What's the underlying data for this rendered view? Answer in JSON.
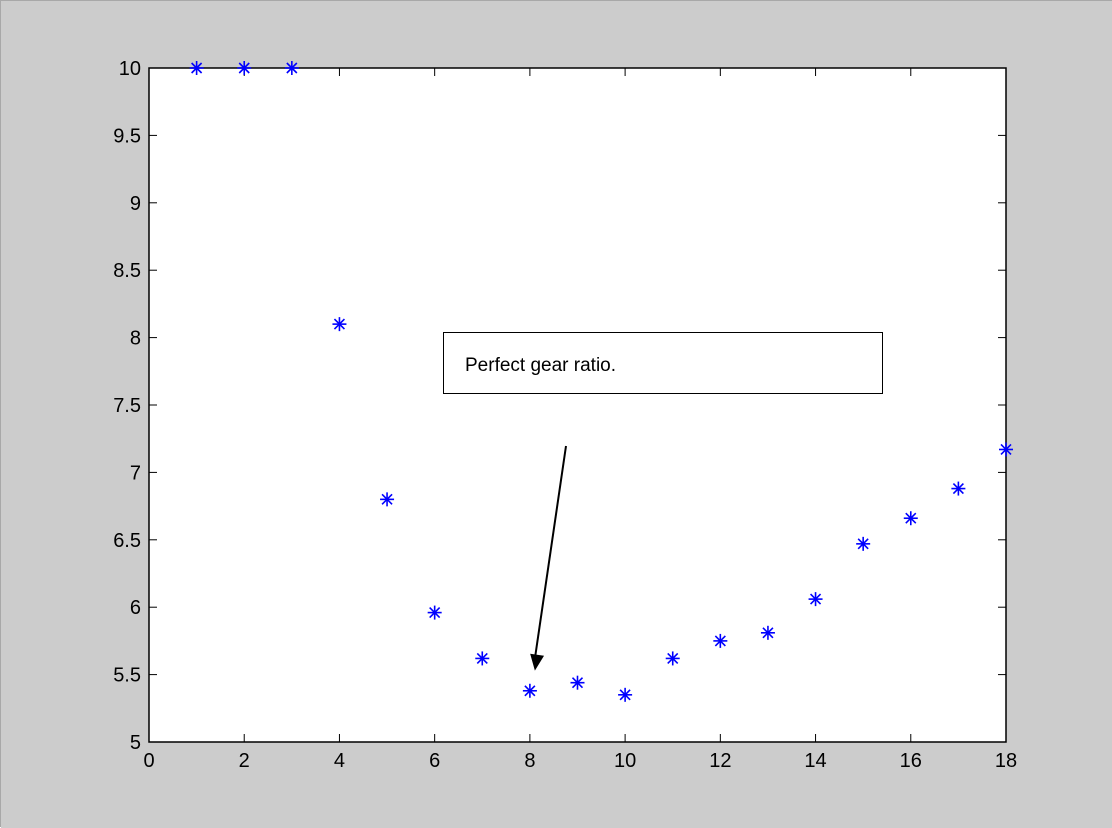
{
  "colors": {
    "figure_background": "#cccccc",
    "axes_background": "#ffffff",
    "marker": "#0000ff",
    "axis": "#000000"
  },
  "chart_data": {
    "type": "scatter",
    "marker": "asterisk",
    "title": "",
    "xlabel": "",
    "ylabel": "",
    "xlim": [
      0,
      18
    ],
    "ylim": [
      5,
      10
    ],
    "x_ticks": [
      0,
      2,
      4,
      6,
      8,
      10,
      12,
      14,
      16,
      18
    ],
    "y_ticks": [
      5,
      5.5,
      6,
      6.5,
      7,
      7.5,
      8,
      8.5,
      9,
      9.5,
      10
    ],
    "grid": false,
    "series": [
      {
        "x": [
          1,
          2,
          3,
          4,
          5,
          6,
          7,
          8,
          9,
          10,
          11,
          12,
          13,
          14,
          15,
          16,
          17,
          18
        ],
        "y": [
          10,
          10,
          10,
          8.1,
          6.8,
          5.96,
          5.62,
          5.38,
          5.44,
          5.35,
          5.62,
          5.75,
          5.81,
          6.06,
          6.47,
          6.66,
          6.88,
          7.17
        ]
      }
    ],
    "annotation": {
      "text": "Perfect gear ratio.",
      "arrow_to": {
        "x": 8,
        "y": 5.5
      }
    }
  }
}
